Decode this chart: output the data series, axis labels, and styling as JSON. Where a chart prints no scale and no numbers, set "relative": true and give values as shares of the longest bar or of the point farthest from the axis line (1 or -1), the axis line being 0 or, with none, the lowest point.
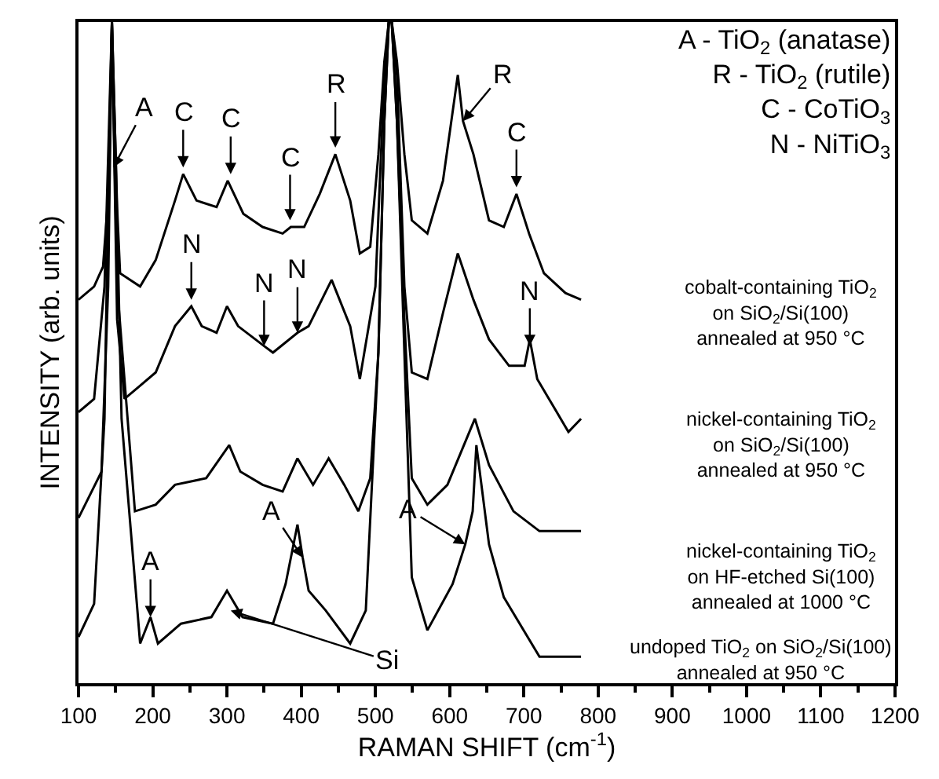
{
  "chart_data": {
    "type": "line",
    "relative": true,
    "xlabel": "RAMAN SHIFT (cm$^{-1}$)",
    "ylabel": "INTENSITY (arb. units)",
    "xlim": [
      100,
      1200
    ],
    "xticks": [
      100,
      200,
      300,
      400,
      500,
      600,
      700,
      800,
      900,
      1000,
      1100,
      1200
    ],
    "marker": "none",
    "line_style": "solid",
    "series": [
      {
        "color": "#000000",
        "x": [
          100,
          121,
          133,
          141,
          145,
          152,
          156,
          183,
          204,
          230,
          241,
          259,
          286,
          301,
          322,
          348,
          375,
          386,
          404,
          425,
          446,
          466,
          479,
          493,
          504,
          512,
          518,
          522,
          529,
          539,
          549,
          570,
          591,
          611,
          618,
          632,
          653,
          673,
          690,
          707,
          727,
          756,
          777
        ],
        "values": [
          0.58,
          0.6,
          0.63,
          0.75,
          1.0,
          0.72,
          0.62,
          0.6,
          0.64,
          0.73,
          0.77,
          0.73,
          0.72,
          0.76,
          0.71,
          0.69,
          0.68,
          0.69,
          0.69,
          0.74,
          0.8,
          0.73,
          0.65,
          0.66,
          0.8,
          0.94,
          1.0,
          1.0,
          0.94,
          0.8,
          0.7,
          0.68,
          0.76,
          0.92,
          0.85,
          0.8,
          0.7,
          0.69,
          0.74,
          0.68,
          0.62,
          0.59,
          0.58
        ]
      },
      {
        "color": "#000000",
        "x": [
          100,
          121,
          135,
          145,
          152,
          162,
          183,
          204,
          230,
          252,
          266,
          286,
          300,
          315,
          350,
          362,
          395,
          410,
          441,
          466,
          479,
          500,
          512,
          518,
          522,
          529,
          539,
          549,
          570,
          591,
          611,
          632,
          653,
          680,
          701,
          708,
          718,
          739,
          760,
          777
        ],
        "values": [
          0.41,
          0.43,
          0.6,
          1.0,
          0.55,
          0.43,
          0.45,
          0.47,
          0.54,
          0.57,
          0.54,
          0.53,
          0.57,
          0.54,
          0.51,
          0.5,
          0.53,
          0.54,
          0.61,
          0.54,
          0.46,
          0.6,
          0.92,
          1.0,
          1.0,
          0.92,
          0.6,
          0.47,
          0.46,
          0.56,
          0.65,
          0.58,
          0.52,
          0.48,
          0.48,
          0.52,
          0.46,
          0.42,
          0.38,
          0.4
        ]
      },
      {
        "color": "#000000",
        "x": [
          100,
          131,
          140,
          145,
          152,
          176,
          204,
          230,
          272,
          303,
          318,
          348,
          375,
          395,
          416,
          437,
          458,
          477,
          493,
          504,
          512,
          518,
          522,
          529,
          539,
          549,
          570,
          597,
          634,
          653,
          686,
          721,
          769,
          777
        ],
        "values": [
          0.25,
          0.32,
          0.6,
          1.0,
          0.6,
          0.26,
          0.27,
          0.3,
          0.31,
          0.36,
          0.32,
          0.3,
          0.29,
          0.34,
          0.3,
          0.34,
          0.3,
          0.26,
          0.31,
          0.5,
          0.85,
          1.0,
          1.0,
          0.85,
          0.55,
          0.31,
          0.27,
          0.3,
          0.4,
          0.33,
          0.26,
          0.23,
          0.23,
          0.23
        ]
      },
      {
        "color": "#000000",
        "x": [
          100,
          121,
          135,
          141,
          145,
          150,
          158,
          183,
          197,
          207,
          238,
          279,
          300,
          321,
          362,
          379,
          395,
          402,
          410,
          433,
          466,
          487,
          504,
          512,
          518,
          522,
          529,
          539,
          549,
          570,
          604,
          621,
          631,
          636,
          653,
          673,
          721,
          769,
          777
        ],
        "values": [
          0.07,
          0.12,
          0.4,
          0.8,
          1.0,
          0.8,
          0.4,
          0.06,
          0.1,
          0.06,
          0.09,
          0.1,
          0.14,
          0.1,
          0.09,
          0.15,
          0.24,
          0.19,
          0.14,
          0.11,
          0.06,
          0.11,
          0.5,
          0.85,
          1.0,
          1.0,
          0.85,
          0.5,
          0.16,
          0.08,
          0.15,
          0.21,
          0.26,
          0.36,
          0.21,
          0.13,
          0.04,
          0.04,
          0.04
        ]
      }
    ],
    "annotations": [
      {
        "text": "A",
        "x": 147,
        "y": 0.78
      },
      {
        "text": "C",
        "x": 241,
        "y": 0.78
      },
      {
        "text": "C",
        "x": 305,
        "y": 0.77
      },
      {
        "text": "C",
        "x": 385,
        "y": 0.7
      },
      {
        "text": "R",
        "x": 446,
        "y": 0.81
      },
      {
        "text": "R",
        "x": 618,
        "y": 0.85
      },
      {
        "text": "C",
        "x": 690,
        "y": 0.75
      },
      {
        "text": "N",
        "x": 252,
        "y": 0.58
      },
      {
        "text": "N",
        "x": 350,
        "y": 0.51
      },
      {
        "text": "N",
        "x": 395,
        "y": 0.53
      },
      {
        "text": "N",
        "x": 708,
        "y": 0.51
      },
      {
        "text": "A",
        "x": 197,
        "y": 0.1
      },
      {
        "text": "A",
        "x": 402,
        "y": 0.19
      },
      {
        "text": "A",
        "x": 621,
        "y": 0.21
      },
      {
        "text": "Si",
        "x": 305,
        "y": 0.11
      },
      "A - TiO$_{2}$ (anatase)\nR - TiO$_{2}$ (rutile)\nC - CoTiO$_{3}$\nN - NiTiO$_{3}$",
      "cobalt-containing TiO$_{2}$\non SiO$_{2}$/Si(100)\nannealed at 950 °C",
      "nickel-containing TiO$_{2}$\non SiO$_{2}$/Si(100)\nannealed at 950 °C",
      "nickel-containing TiO$_{2}$\non HF-etched Si(100)\nannealed at 1000 °C",
      "undoped TiO$_{2}$ on SiO$_{2}$/Si(100)\nannealed at 950 °C"
    ]
  }
}
